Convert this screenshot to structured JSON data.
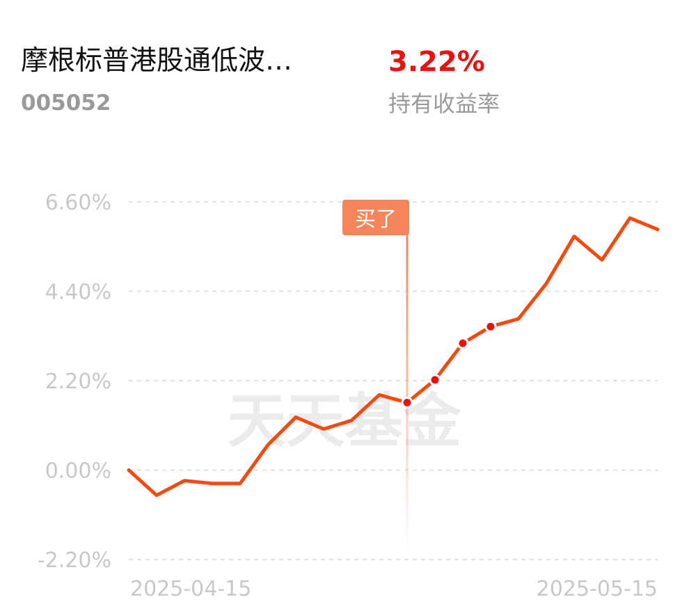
{
  "header": {
    "title": "摩根标普港股通低波…",
    "code": "005052",
    "return_value": "3.22%",
    "return_label": "持有收益率"
  },
  "chart_data": {
    "type": "line",
    "categories": [
      "2025-04-15",
      null,
      null,
      null,
      null,
      null,
      null,
      null,
      null,
      null,
      null,
      null,
      null,
      null,
      null,
      null,
      null,
      null,
      null,
      "2025-05-15"
    ],
    "series": [
      {
        "color": "#f24a0f",
        "values": [
          0.0,
          -0.62,
          -0.26,
          -0.33,
          -0.33,
          0.62,
          1.3,
          1.01,
          1.22,
          1.85,
          1.66,
          2.22,
          3.12,
          3.53,
          3.72,
          4.59,
          5.75,
          5.17,
          6.2,
          5.92
        ]
      }
    ],
    "ylim": [
      -2.2,
      6.6
    ],
    "yticks": [
      {
        "value": -2.2,
        "label": "-2.20%"
      },
      {
        "value": 0,
        "label": "0.00%"
      },
      {
        "value": 2.2,
        "label": "2.20%"
      },
      {
        "value": 4.4,
        "label": "4.40%"
      },
      {
        "value": 6.6,
        "label": "6.60%"
      }
    ],
    "grid": true,
    "buy_label": "买了",
    "watermark": "天天基金"
  }
}
